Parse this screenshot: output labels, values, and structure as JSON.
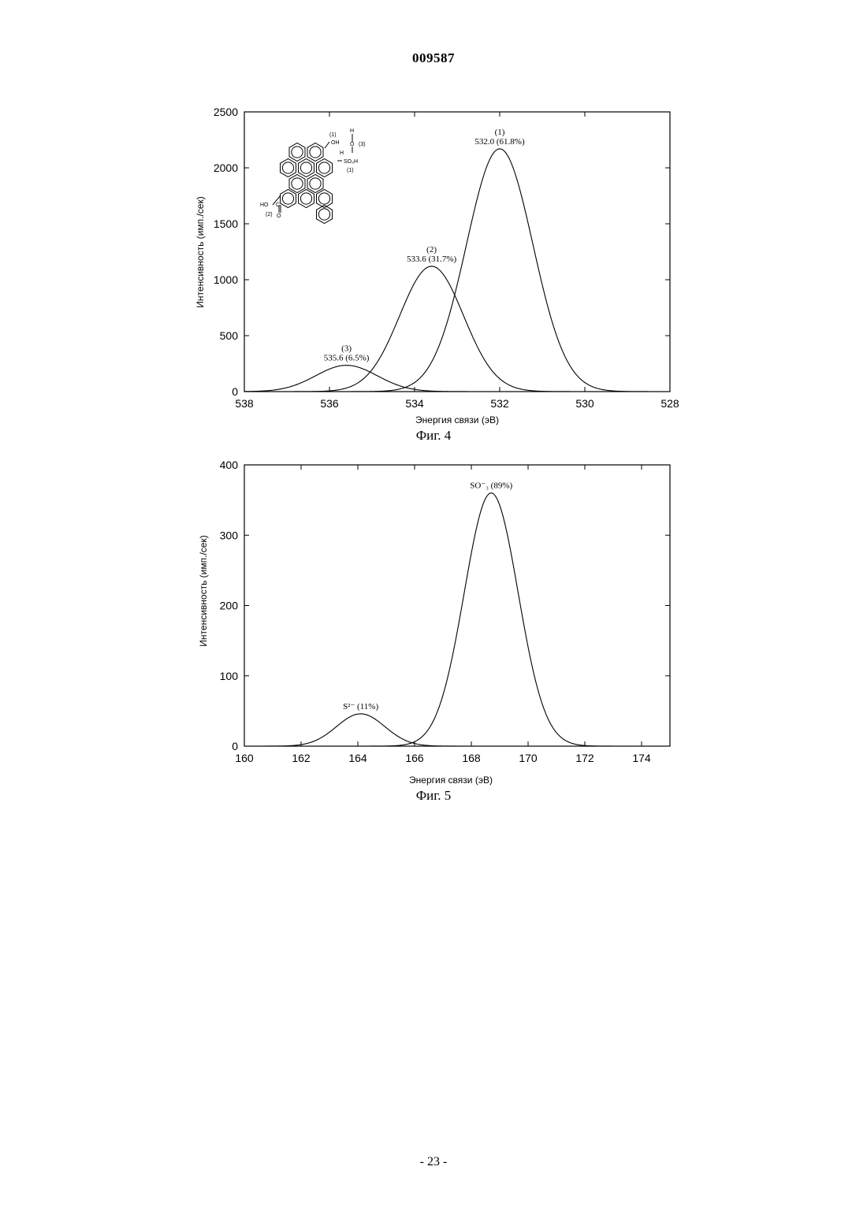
{
  "document": {
    "number": "009587",
    "page": "- 23 -"
  },
  "chart_data": [
    {
      "type": "line",
      "caption": "Фиг. 4",
      "xlabel": "Энергия связи (эВ)",
      "ylabel": "Интенсивность (имп./сек)",
      "xlim": [
        538,
        528
      ],
      "ylim": [
        0,
        2500
      ],
      "xticks": [
        538,
        536,
        534,
        532,
        530,
        528
      ],
      "yticks": [
        0,
        500,
        1000,
        1500,
        2000,
        2500
      ],
      "series": [
        {
          "center": 532.0,
          "amplitude": 2170,
          "sigma": 0.78
        },
        {
          "center": 533.6,
          "amplitude": 1120,
          "sigma": 0.75
        },
        {
          "center": 535.6,
          "amplitude": 235,
          "sigma": 0.72
        }
      ],
      "annotations": [
        {
          "x": 532.0,
          "y": 2170,
          "lines": [
            "(1)",
            "532.0 (61.8%)"
          ]
        },
        {
          "x": 533.6,
          "y": 1120,
          "lines": [
            "(2)",
            "533.6 (31.7%)"
          ]
        },
        {
          "x": 535.6,
          "y": 235,
          "lines": [
            "(3)",
            "535.6 (6.5%)"
          ]
        }
      ],
      "molecule_labels": {
        "oh": "OH",
        "h_top": "H",
        "o_bridge": "O",
        "h_bridge": "H",
        "so3h": "SO₃H",
        "ho_acid": "HO",
        "c_acid": "C",
        "o_acid": "O",
        "n1a": "(1)",
        "n1b": "(1)",
        "n2": "(2)",
        "n3": "(3)"
      }
    },
    {
      "type": "line",
      "caption": "Фиг. 5",
      "xlabel": "Энергия связи (эВ)",
      "ylabel": "Интенсивность (имп./сек)",
      "xlim": [
        160,
        175
      ],
      "ylim": [
        0,
        400
      ],
      "xticks": [
        160,
        162,
        164,
        166,
        168,
        170,
        172,
        174
      ],
      "yticks": [
        0,
        100,
        200,
        300,
        400
      ],
      "series": [
        {
          "center": 168.7,
          "amplitude": 360,
          "sigma": 0.95
        },
        {
          "center": 164.1,
          "amplitude": 46,
          "sigma": 0.85
        }
      ],
      "annotations": [
        {
          "x": 168.7,
          "y": 360,
          "lines": [
            "SO⁻₃ (89%)"
          ]
        },
        {
          "x": 164.1,
          "y": 46,
          "lines": [
            "S²⁻ (11%)"
          ]
        }
      ]
    }
  ]
}
